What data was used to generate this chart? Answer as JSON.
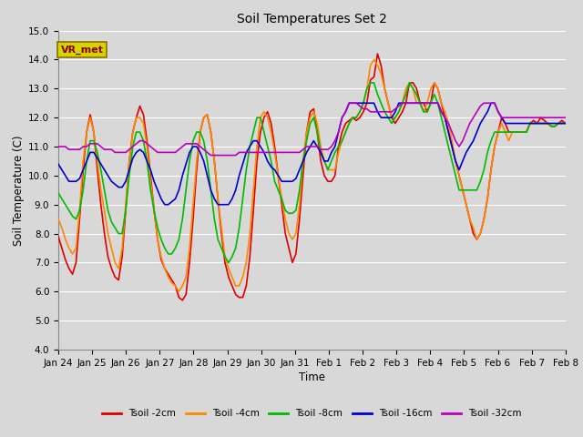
{
  "title": "Soil Temperatures Set 2",
  "xlabel": "Time",
  "ylabel": "Soil Temperature (C)",
  "ylim": [
    4.0,
    15.0
  ],
  "yticks": [
    4.0,
    5.0,
    6.0,
    7.0,
    8.0,
    9.0,
    10.0,
    11.0,
    12.0,
    13.0,
    14.0,
    15.0
  ],
  "background_color": "#d8d8d8",
  "plot_bg_color": "#d8d8d8",
  "grid_color": "#ffffff",
  "annotation_text": "VR_met",
  "annotation_box_color": "#d4d400",
  "annotation_text_color": "#8b0000",
  "series": {
    "Tsoil -2cm": {
      "color": "#dd0000",
      "linewidth": 1.2
    },
    "Tsoil -4cm": {
      "color": "#ff8800",
      "linewidth": 1.2
    },
    "Tsoil -8cm": {
      "color": "#00bb00",
      "linewidth": 1.2
    },
    "Tsoil -16cm": {
      "color": "#0000cc",
      "linewidth": 1.2
    },
    "Tsoil -32cm": {
      "color": "#bb00bb",
      "linewidth": 1.2
    }
  },
  "xtick_labels": [
    "Jan 24",
    "Jan 25",
    "Jan 26",
    "Jan 27",
    "Jan 28",
    "Jan 29",
    "Jan 30",
    "Jan 31",
    "Feb 1",
    "Feb 2",
    "Feb 3",
    "Feb 4",
    "Feb 5",
    "Feb 6",
    "Feb 7",
    "Feb 8"
  ],
  "xtick_positions": [
    0,
    1,
    2,
    3,
    4,
    5,
    6,
    7,
    8,
    9,
    10,
    11,
    12,
    13,
    14,
    15
  ],
  "t2cm": [
    7.9,
    7.5,
    7.1,
    6.8,
    6.6,
    7.0,
    8.5,
    10.2,
    11.5,
    12.1,
    11.5,
    10.2,
    9.0,
    8.0,
    7.2,
    6.8,
    6.5,
    6.4,
    7.2,
    8.8,
    10.5,
    11.5,
    12.0,
    12.4,
    12.1,
    11.2,
    10.0,
    8.8,
    7.8,
    7.1,
    6.8,
    6.6,
    6.4,
    6.2,
    5.8,
    5.7,
    5.9,
    7.0,
    8.5,
    10.2,
    11.5,
    12.0,
    12.1,
    11.5,
    10.5,
    9.2,
    8.0,
    7.0,
    6.5,
    6.2,
    5.9,
    5.8,
    5.8,
    6.2,
    7.2,
    8.8,
    10.5,
    11.5,
    12.0,
    12.2,
    11.8,
    11.0,
    10.0,
    9.0,
    8.0,
    7.5,
    7.0,
    7.3,
    8.5,
    10.0,
    11.5,
    12.2,
    12.3,
    11.5,
    10.5,
    10.0,
    9.8,
    9.8,
    10.0,
    11.0,
    11.5,
    11.8,
    11.9,
    12.0,
    11.9,
    12.0,
    12.2,
    12.5,
    13.3,
    13.4,
    14.2,
    13.8,
    13.0,
    12.5,
    12.0,
    11.8,
    12.0,
    12.2,
    12.5,
    13.2,
    13.2,
    13.0,
    12.5,
    12.5,
    12.2,
    12.5,
    13.2,
    13.0,
    12.5,
    12.0,
    11.5,
    11.0,
    10.5,
    10.0,
    9.5,
    9.0,
    8.5,
    8.0,
    7.8,
    8.0,
    8.5,
    9.2,
    10.2,
    11.0,
    11.5,
    12.0,
    11.8,
    11.5,
    11.5,
    11.5,
    11.5,
    11.5,
    11.5,
    11.8,
    11.9,
    11.8,
    12.0,
    11.9,
    11.8,
    11.7,
    11.7,
    11.8,
    11.9,
    11.8
  ],
  "t4cm": [
    8.5,
    8.2,
    7.8,
    7.5,
    7.3,
    7.5,
    8.8,
    10.5,
    11.5,
    12.0,
    11.5,
    10.5,
    9.5,
    8.8,
    8.0,
    7.5,
    7.0,
    6.8,
    7.5,
    9.0,
    10.5,
    11.5,
    12.0,
    12.0,
    11.8,
    11.0,
    9.8,
    8.8,
    7.8,
    7.2,
    6.8,
    6.5,
    6.3,
    6.2,
    6.0,
    6.2,
    6.5,
    7.5,
    9.0,
    10.5,
    11.5,
    12.0,
    12.1,
    11.5,
    10.5,
    9.2,
    8.2,
    7.2,
    6.8,
    6.5,
    6.2,
    6.2,
    6.5,
    7.0,
    8.0,
    9.5,
    11.0,
    12.0,
    12.2,
    12.0,
    11.5,
    10.8,
    10.0,
    9.2,
    8.5,
    8.0,
    7.8,
    8.0,
    9.0,
    10.5,
    11.5,
    12.0,
    12.2,
    11.8,
    11.0,
    10.5,
    10.2,
    10.2,
    10.2,
    10.8,
    11.2,
    11.5,
    11.8,
    12.0,
    12.0,
    12.2,
    12.5,
    13.0,
    13.8,
    14.0,
    13.8,
    13.5,
    13.0,
    12.5,
    12.0,
    12.0,
    12.2,
    12.5,
    13.0,
    13.2,
    13.0,
    12.5,
    12.5,
    12.2,
    12.5,
    13.0,
    13.2,
    13.0,
    12.5,
    12.2,
    11.8,
    11.2,
    10.5,
    10.0,
    9.5,
    9.0,
    8.5,
    8.2,
    7.8,
    8.0,
    8.5,
    9.2,
    10.2,
    11.0,
    11.5,
    11.8,
    11.5,
    11.2,
    11.5,
    11.5,
    11.5,
    11.5,
    11.5,
    11.8,
    11.8,
    11.8,
    11.8,
    11.8,
    11.8,
    11.7,
    11.7,
    11.8,
    11.8,
    11.8
  ],
  "t8cm": [
    9.4,
    9.2,
    9.0,
    8.8,
    8.6,
    8.5,
    8.8,
    9.5,
    10.5,
    11.2,
    11.2,
    10.8,
    10.2,
    9.5,
    8.8,
    8.4,
    8.2,
    8.0,
    8.0,
    8.8,
    10.0,
    11.0,
    11.5,
    11.5,
    11.2,
    10.5,
    9.5,
    8.8,
    8.2,
    7.8,
    7.5,
    7.3,
    7.3,
    7.5,
    7.8,
    8.5,
    9.5,
    10.5,
    11.2,
    11.5,
    11.5,
    11.2,
    10.5,
    9.5,
    8.5,
    7.8,
    7.5,
    7.2,
    7.0,
    7.2,
    7.5,
    8.2,
    9.2,
    10.2,
    11.0,
    11.5,
    12.0,
    12.0,
    11.5,
    11.0,
    10.5,
    9.8,
    9.5,
    9.2,
    8.8,
    8.7,
    8.7,
    8.8,
    9.5,
    10.5,
    11.2,
    11.8,
    12.0,
    11.5,
    10.8,
    10.5,
    10.2,
    10.5,
    10.8,
    11.0,
    11.2,
    11.5,
    11.8,
    12.0,
    12.0,
    12.2,
    12.5,
    13.0,
    13.2,
    13.2,
    12.8,
    12.5,
    12.2,
    12.0,
    11.8,
    12.0,
    12.2,
    12.5,
    12.8,
    13.2,
    13.0,
    12.8,
    12.5,
    12.2,
    12.2,
    12.5,
    12.8,
    12.5,
    12.0,
    11.5,
    11.0,
    10.5,
    10.0,
    9.5,
    9.5,
    9.5,
    9.5,
    9.5,
    9.5,
    9.8,
    10.2,
    10.8,
    11.2,
    11.5,
    11.5,
    11.5,
    11.5,
    11.5,
    11.5,
    11.5,
    11.5,
    11.5,
    11.5,
    11.8,
    11.8,
    11.8,
    11.8,
    11.8,
    11.8,
    11.7,
    11.7,
    11.8,
    11.8,
    11.8
  ],
  "t16cm": [
    10.4,
    10.2,
    10.0,
    9.8,
    9.8,
    9.8,
    9.9,
    10.2,
    10.5,
    10.8,
    10.8,
    10.6,
    10.4,
    10.2,
    10.0,
    9.8,
    9.7,
    9.6,
    9.6,
    9.8,
    10.2,
    10.6,
    10.8,
    10.9,
    10.8,
    10.5,
    10.2,
    9.8,
    9.5,
    9.2,
    9.0,
    9.0,
    9.1,
    9.2,
    9.5,
    10.0,
    10.4,
    10.8,
    11.0,
    11.0,
    10.8,
    10.5,
    10.0,
    9.5,
    9.2,
    9.0,
    9.0,
    9.0,
    9.0,
    9.2,
    9.5,
    10.0,
    10.4,
    10.8,
    11.0,
    11.2,
    11.2,
    11.0,
    10.8,
    10.5,
    10.3,
    10.2,
    10.0,
    9.8,
    9.8,
    9.8,
    9.8,
    9.9,
    10.2,
    10.5,
    10.8,
    11.0,
    11.2,
    11.0,
    10.8,
    10.5,
    10.5,
    10.8,
    11.0,
    11.5,
    12.0,
    12.2,
    12.5,
    12.5,
    12.5,
    12.5,
    12.5,
    12.5,
    12.5,
    12.5,
    12.2,
    12.0,
    12.0,
    12.0,
    12.0,
    12.2,
    12.5,
    12.5,
    12.5,
    12.5,
    12.5,
    12.5,
    12.5,
    12.5,
    12.5,
    12.5,
    12.5,
    12.5,
    12.2,
    12.0,
    11.5,
    11.0,
    10.5,
    10.2,
    10.5,
    10.8,
    11.0,
    11.2,
    11.5,
    11.8,
    12.0,
    12.2,
    12.5,
    12.5,
    12.2,
    12.0,
    11.8,
    11.8,
    11.8,
    11.8,
    11.8,
    11.8,
    11.8,
    11.8,
    11.8,
    11.8,
    11.8,
    11.8,
    11.8,
    11.8,
    11.8,
    11.8,
    11.8,
    11.8
  ],
  "t32cm": [
    11.0,
    11.0,
    11.0,
    10.9,
    10.9,
    10.9,
    10.9,
    11.0,
    11.0,
    11.1,
    11.1,
    11.1,
    11.0,
    10.9,
    10.9,
    10.9,
    10.8,
    10.8,
    10.8,
    10.8,
    10.9,
    11.0,
    11.1,
    11.2,
    11.2,
    11.1,
    11.0,
    10.9,
    10.8,
    10.8,
    10.8,
    10.8,
    10.8,
    10.8,
    10.9,
    11.0,
    11.1,
    11.1,
    11.1,
    11.1,
    11.0,
    10.9,
    10.8,
    10.7,
    10.7,
    10.7,
    10.7,
    10.7,
    10.7,
    10.7,
    10.7,
    10.8,
    10.8,
    10.8,
    10.8,
    10.8,
    10.8,
    10.8,
    10.8,
    10.8,
    10.8,
    10.8,
    10.8,
    10.8,
    10.8,
    10.8,
    10.8,
    10.8,
    10.8,
    10.9,
    11.0,
    11.0,
    11.0,
    11.0,
    10.9,
    10.9,
    10.9,
    11.0,
    11.2,
    11.5,
    12.0,
    12.2,
    12.5,
    12.5,
    12.5,
    12.4,
    12.3,
    12.3,
    12.2,
    12.2,
    12.2,
    12.2,
    12.2,
    12.2,
    12.2,
    12.3,
    12.4,
    12.5,
    12.5,
    12.5,
    12.5,
    12.5,
    12.5,
    12.5,
    12.5,
    12.5,
    12.5,
    12.5,
    12.2,
    12.0,
    11.8,
    11.5,
    11.2,
    11.0,
    11.2,
    11.5,
    11.8,
    12.0,
    12.2,
    12.4,
    12.5,
    12.5,
    12.5,
    12.5,
    12.2,
    12.0,
    12.0,
    12.0,
    12.0,
    12.0,
    12.0,
    12.0,
    12.0,
    12.0,
    12.0,
    12.0,
    12.0,
    12.0,
    12.0,
    12.0,
    12.0,
    12.0,
    12.0,
    12.0
  ]
}
